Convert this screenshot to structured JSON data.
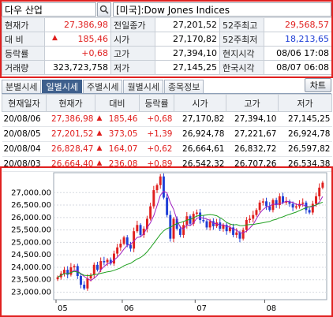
{
  "search": {
    "symbol_value": "다우 산업",
    "icon": "magnifier-icon",
    "name_value": "[미국]:Dow Jones Indices"
  },
  "info": {
    "rows": [
      [
        {
          "label": "현재가"
        },
        {
          "value": "27,386,98",
          "cls": "up"
        },
        {
          "label": "전일종가"
        },
        {
          "value": "27,201,52"
        },
        {
          "label": "52주최고"
        },
        {
          "value": "29,568,57",
          "cls": "up"
        }
      ],
      [
        {
          "label": "대  비"
        },
        {
          "value": "185,46",
          "cls": "up",
          "arrow": "▲"
        },
        {
          "label": "시가"
        },
        {
          "value": "27,170,82"
        },
        {
          "label": "52주최저"
        },
        {
          "value": "18,213,65",
          "cls": "dn"
        }
      ],
      [
        {
          "label": "등락률"
        },
        {
          "value": "+0,68",
          "cls": "up"
        },
        {
          "label": "고가"
        },
        {
          "value": "27,394,10"
        },
        {
          "label": "현지시각"
        },
        {
          "value": "08/06 17:08"
        }
      ],
      [
        {
          "label": "거래량"
        },
        {
          "value": "323,723,758"
        },
        {
          "label": "저가"
        },
        {
          "value": "27,145,25"
        },
        {
          "label": "한국시각"
        },
        {
          "value": "08/07 06:08"
        }
      ]
    ]
  },
  "tabs": [
    "분별시세",
    "일별시세",
    "주별시세",
    "월별시세",
    "종목정보"
  ],
  "active_tab": 1,
  "chart_button": "차트",
  "daily": {
    "headers": [
      "현재일자",
      "현재가",
      "대비",
      "등락률",
      "시가",
      "고가",
      "저가"
    ],
    "rows": [
      {
        "date": "20/08/06",
        "price": "27,386,98",
        "change": "185,46",
        "rate": "+0,68",
        "open": "27,170,82",
        "high": "27,394,10",
        "low": "27,145,25"
      },
      {
        "date": "20/08/05",
        "price": "27,201,52",
        "change": "373,05",
        "rate": "+1,39",
        "open": "26,924,78",
        "high": "27,221,67",
        "low": "26,924,78"
      },
      {
        "date": "20/08/04",
        "price": "26,828,47",
        "change": "164,07",
        "rate": "+0,62",
        "open": "26,664,61",
        "high": "26,832,72",
        "low": "26,597,82"
      },
      {
        "date": "20/08/03",
        "price": "26,664,40",
        "change": "236,08",
        "rate": "+0,89",
        "open": "26,542,32",
        "high": "26,707,26",
        "low": "26,534,38"
      }
    ],
    "up_arrow": "▲",
    "up_color": "#e0201f"
  },
  "chart_data": {
    "type": "candlestick",
    "y_ticks": [
      "27,000.00",
      "26,500.00",
      "26,000.00",
      "25,500.00",
      "25,000.00",
      "24,500.00",
      "24,000.00",
      "23,500.00",
      "23,000.00"
    ],
    "ylim": [
      22700,
      27800
    ],
    "x_ticks": [
      "05",
      "06",
      "07",
      "08"
    ],
    "colors": {
      "up": "#e0201f",
      "down": "#1f3fd6",
      "ma_short": "#a020c0",
      "ma_long": "#20a020"
    },
    "closes": [
      23600,
      23750,
      23900,
      23700,
      24000,
      24050,
      23650,
      23300,
      23150,
      23550,
      23700,
      24100,
      23900,
      24250,
      24200,
      24300,
      24150,
      24550,
      24800,
      24950,
      25200,
      24900,
      24750,
      25450,
      25700,
      25300,
      25550,
      25950,
      26450,
      27100,
      27300,
      27650,
      26800,
      26100,
      25150,
      25950,
      25550,
      25300,
      25700,
      26050,
      25750,
      26150,
      26200,
      25900,
      25850,
      25600,
      25850,
      25650,
      25800,
      25550,
      25700,
      25450,
      25600,
      25300,
      25400,
      25150,
      25500,
      25900,
      25950,
      26100,
      26300,
      26600,
      26650,
      26450,
      26300,
      26700,
      26500,
      26850,
      26600,
      26650,
      26550,
      26400,
      26450,
      26550,
      26600,
      26300,
      26200,
      26550,
      26850,
      27200,
      27400
    ]
  }
}
